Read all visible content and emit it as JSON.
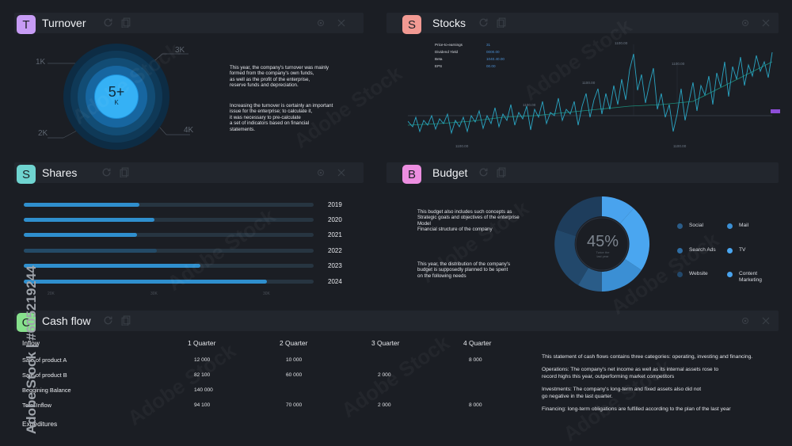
{
  "turnover": {
    "badge": "T",
    "title": "Turnover",
    "center_value": "5+",
    "center_unit": "K",
    "ring_labels": [
      "1K",
      "3K",
      "2K",
      "4K"
    ],
    "paragraph1": [
      "This year, the company's turnover was mainly",
      "formed from the company's own funds,",
      "as well as the profit of the enterprise,",
      "reserve funds and depreciation."
    ],
    "paragraph2": [
      "Increasing the turnover is certainly an important",
      "issue for the enterprise; to calculate it,",
      "it was necessary to pre-calculate",
      "a set of indicators based on financial",
      "statements."
    ]
  },
  "stocks": {
    "badge": "S",
    "title": "Stocks",
    "metrics": [
      {
        "label": "Price-to-earnings",
        "value": "31"
      },
      {
        "label": "Dividend Yield",
        "value": "0000.00"
      },
      {
        "label": "Beta",
        "value": "1040.40.00"
      },
      {
        "label": "EPS",
        "value": "00.00"
      }
    ],
    "chart_tags": [
      "1100.00",
      "1100.00",
      "1100.00",
      "1100.00",
      "1100.00",
      "1100.00"
    ]
  },
  "shares": {
    "badge": "S",
    "title": "Shares",
    "years": [
      "2019",
      "2020",
      "2021",
      "2022",
      "2023",
      "2024"
    ],
    "fractions": [
      0.4,
      0.45,
      0.39,
      0.46,
      0.61,
      0.84
    ],
    "axis_labels": [
      "20K",
      "30K",
      "30K"
    ]
  },
  "budget": {
    "badge": "B",
    "title": "Budget",
    "percent": "45%",
    "donut_sub": [
      "Twice the",
      "last year"
    ],
    "paragraph1": [
      "This budget also includes such concepts as",
      "Strategic goals and objectives of the enterprise",
      "Model",
      "Financial structure of the company"
    ],
    "paragraph2": [
      "This year, the distribution of the company's",
      "budget is supposedly planned to be spent",
      "on the following needs"
    ],
    "legend": [
      {
        "label": "Social",
        "color": "#2a5c88"
      },
      {
        "label": "Mail",
        "color": "#3b8fd4"
      },
      {
        "label": "Search Ads",
        "color": "#2f6ea4"
      },
      {
        "label": "TV",
        "color": "#4aa6f0"
      },
      {
        "label": "Website",
        "color": "#22486b"
      },
      {
        "label": "Content\nMarketing",
        "color": "#49a3ee"
      }
    ]
  },
  "cashflow": {
    "badge": "C",
    "title": "Cash flow",
    "columns": [
      "Inflow",
      "1 Quarter",
      "2 Quarter",
      "3 Quarter",
      "4 Quarter"
    ],
    "rows": [
      {
        "label": "Sale of product A",
        "values": [
          "12 000",
          "10 000",
          "",
          "8 000"
        ]
      },
      {
        "label": "Sale of product B",
        "values": [
          "82 100",
          "60 000",
          "2 000",
          ""
        ]
      },
      {
        "label": "Beggining Balance",
        "values": [
          "140 000",
          "",
          "",
          ""
        ]
      },
      {
        "label": "Total Inflow",
        "values": [
          "94 100",
          "70 000",
          "2 000",
          "8 000"
        ]
      },
      {
        "label": "Expeditures",
        "values": [
          "",
          "",
          "",
          ""
        ]
      }
    ],
    "notes": [
      "This statement of cash flows contains three categories: operating, investing and financing.",
      "Operations: The company's net income as well as its internal assets rose to\nrecord highs this year, outperforming market competitors",
      "Investments: The company's long-term and fixed assets also did not\ngo negative in the last quarter.",
      "Financing: long-term obligations are fulfilled according to the plan of the last year"
    ]
  },
  "watermark": "Adobe Stock",
  "side_id": "Adobe Stock | #605219244",
  "colors": {
    "turnover_badge": "#c79cf5",
    "stocks_badge": "#f29a93",
    "shares_badge": "#6fd4d0",
    "budget_badge": "#ec8ee0",
    "cashflow_badge": "#86e08c",
    "accent": "#3a9be0"
  }
}
